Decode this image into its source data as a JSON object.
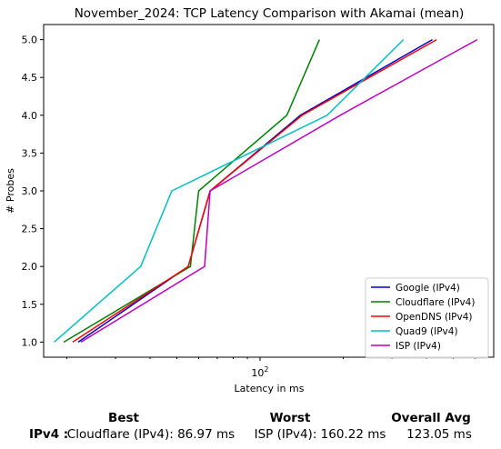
{
  "chart_data": {
    "type": "line",
    "title": "November_2024: TCP Latency Comparison with Akamai (mean)",
    "xlabel": "Latency in ms",
    "ylabel": "# Probes",
    "xscale": "log",
    "xlim": [
      16.5,
      700
    ],
    "ylim": [
      0.8,
      5.2
    ],
    "yticks": [
      "1.0",
      "1.5",
      "2.0",
      "2.5",
      "3.0",
      "3.5",
      "4.0",
      "4.5",
      "5.0"
    ],
    "ytick_values": [
      1.0,
      1.5,
      2.0,
      2.5,
      3.0,
      3.5,
      4.0,
      4.5,
      5.0
    ],
    "xtick_label": "10",
    "xtick_exponent": "2",
    "xtick_value": 100,
    "grid": false,
    "legend_position": "lower-right",
    "series": [
      {
        "name": "Google (IPv4)",
        "color": "#0000cc",
        "x": [
          22.0,
          55.0,
          66.0,
          140.0,
          420.0
        ],
        "y": [
          1,
          2,
          3,
          4,
          5
        ]
      },
      {
        "name": "Cloudflare (IPv4)",
        "color": "#008000",
        "x": [
          19.5,
          56.0,
          60.0,
          125.0,
          164.0
        ],
        "y": [
          1,
          2,
          3,
          4,
          5
        ]
      },
      {
        "name": "OpenDNS (IPv4)",
        "color": "#ff0000",
        "x": [
          21.0,
          55.0,
          66.0,
          142.0,
          435.0
        ],
        "y": [
          1,
          2,
          3,
          4,
          5
        ]
      },
      {
        "name": "Quad9 (IPv4)",
        "color": "#00bfbf",
        "x": [
          18.0,
          37.0,
          48.0,
          175.0,
          330.0
        ],
        "y": [
          1,
          2,
          3,
          4,
          5
        ]
      },
      {
        "name": "ISP (IPv4)",
        "color": "#bf00bf",
        "x": [
          22.5,
          63.0,
          66.0,
          195.0,
          610.0
        ],
        "y": [
          1,
          2,
          3,
          4,
          5
        ]
      }
    ]
  },
  "summary": {
    "best_header": "Best",
    "worst_header": "Worst",
    "avg_header": "Overall Avg",
    "row_label": "IPv4 :",
    "best_value": "Cloudflare (IPv4): 86.97 ms",
    "worst_value": "ISP (IPv4): 160.22 ms",
    "avg_value": "123.05 ms"
  }
}
